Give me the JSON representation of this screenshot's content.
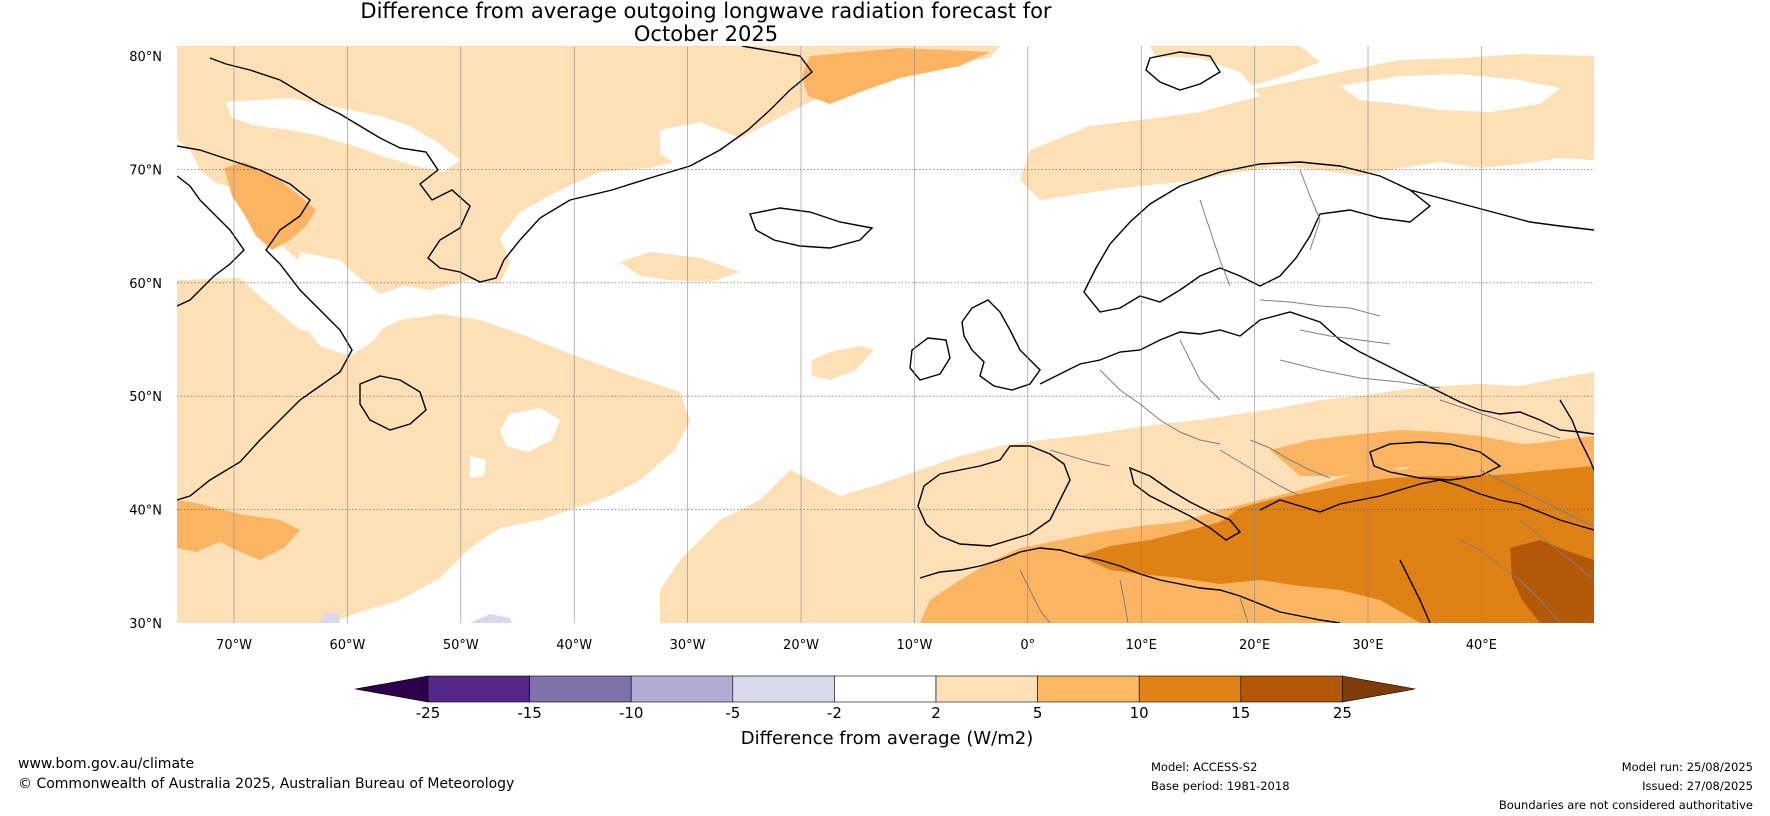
{
  "title": {
    "line1": "Difference from average outgoing longwave radiation forecast for",
    "line2": "October 2025"
  },
  "map": {
    "lat_ticks": [
      "80°N",
      "70°N",
      "60°N",
      "50°N",
      "40°N",
      "30°N"
    ],
    "lon_ticks": [
      "70°W",
      "60°W",
      "50°W",
      "40°W",
      "30°W",
      "20°W",
      "10°W",
      "0°",
      "10°E",
      "20°E",
      "30°E",
      "40°E"
    ],
    "colors": {
      "ocean": "#ffffff",
      "class_2_5": "#fde0b6",
      "class_5_10": "#fbb461",
      "class_10_15": "#e08115",
      "class_15_25": "#b35806",
      "class_m2_m5": "#d8d9ec",
      "coast": "#000000",
      "border": "#808080"
    }
  },
  "colorbar": {
    "ticks": [
      "-25",
      "-15",
      "-10",
      "-5",
      "-2",
      "2",
      "5",
      "10",
      "15",
      "25"
    ],
    "colors": [
      "#2d004b",
      "#542788",
      "#8073ac",
      "#b2abd2",
      "#d8daeb",
      "#ffffff",
      "#fee0b6",
      "#fdb863",
      "#e08214",
      "#b35806",
      "#7f3b08"
    ],
    "label": "Difference from average (W/m2)"
  },
  "footer": {
    "website": "www.bom.gov.au/climate",
    "copyright": "© Commonwealth of Australia 2025, Australian Bureau of Meteorology",
    "model": "Model: ACCESS-S2",
    "base_period": "Base period: 1981-2018",
    "model_run": "Model run: 25/08/2025",
    "issued": "Issued: 27/08/2025",
    "disclaimer": "Boundaries are not considered authoritative"
  }
}
